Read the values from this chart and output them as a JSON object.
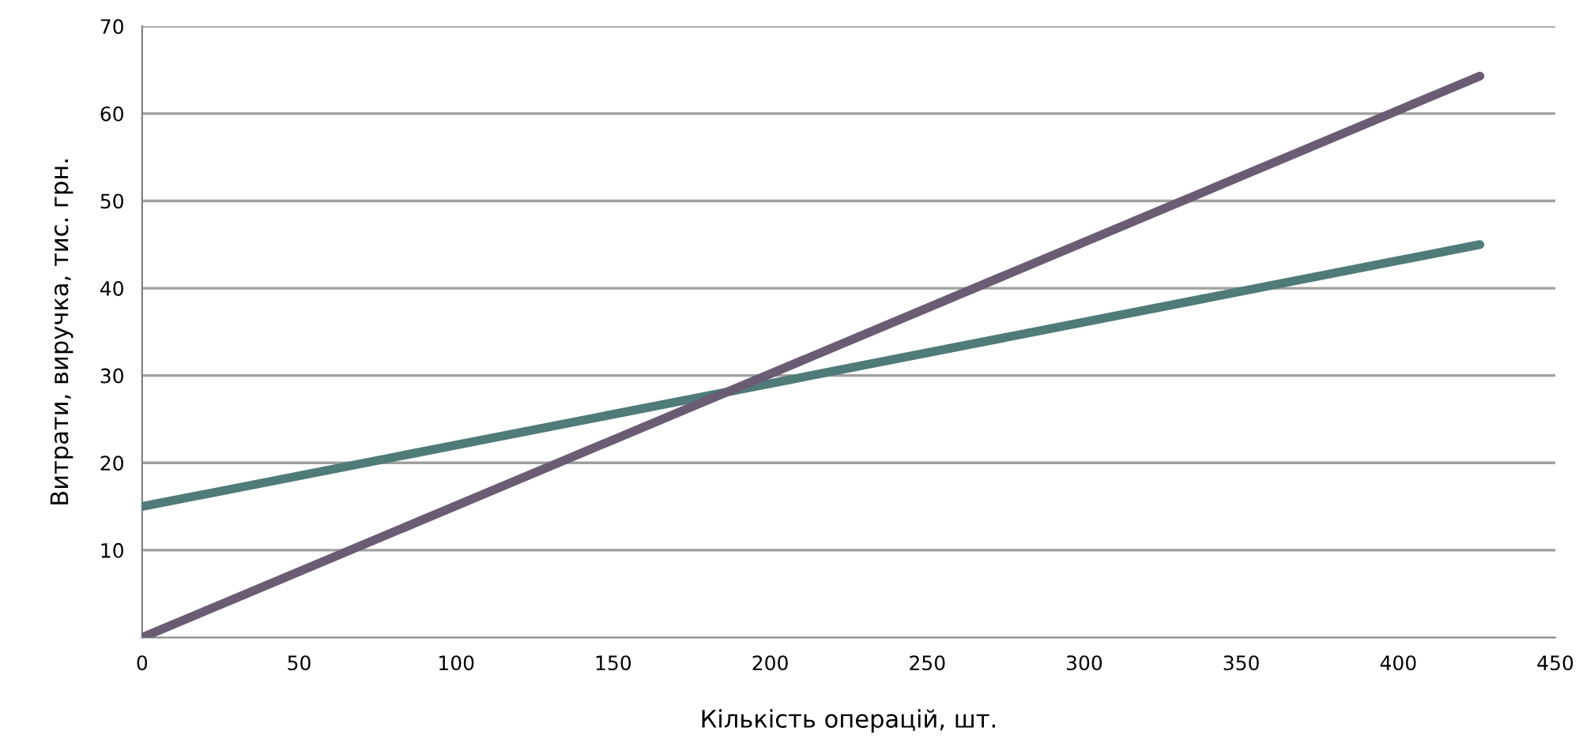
{
  "chart_data": {
    "type": "line",
    "xlabel": "Кількість операцій, шт.",
    "ylabel": "Витрати, виручка, тис. грн.",
    "x": [
      0,
      426
    ],
    "xlim": [
      0,
      450
    ],
    "xticks": [
      0,
      50,
      100,
      150,
      200,
      250,
      300,
      350,
      400,
      450
    ],
    "ylim": [
      0,
      70
    ],
    "yticks": [
      10,
      20,
      30,
      40,
      50,
      60,
      70
    ],
    "grid": "y",
    "marker": "none",
    "line_style": "solid",
    "series": [
      {
        "color": "#4f7b79",
        "values": [
          15,
          45
        ]
      },
      {
        "color": "#6a5c72",
        "values": [
          0,
          64.3
        ]
      }
    ]
  }
}
